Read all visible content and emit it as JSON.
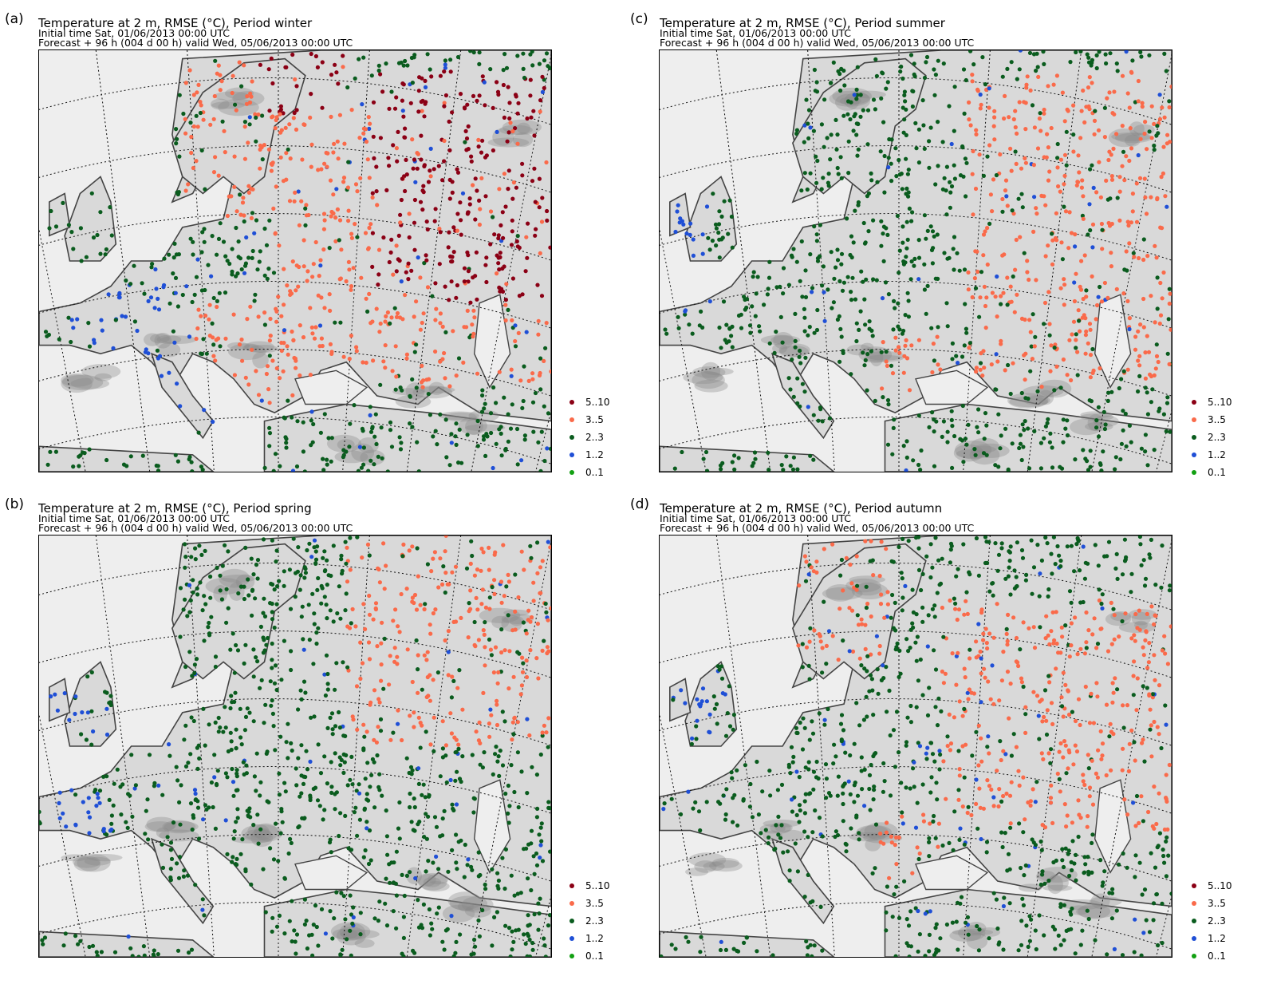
{
  "legend": {
    "classes": [
      {
        "label": "5..10",
        "color": "#8b0015"
      },
      {
        "label": "3..5",
        "color": "#fa6a4a"
      },
      {
        "label": "2..3",
        "color": "#0a5c1e"
      },
      {
        "label": "1..2",
        "color": "#1f4fd6"
      },
      {
        "label": "0..1",
        "color": "#12a012"
      }
    ]
  },
  "panels": [
    {
      "id": "a",
      "label": "(a)",
      "title": "Temperature at 2 m, RMSE (°C), Period winter",
      "initial": "Initial time  Sat, 01/06/2013  00:00 UTC",
      "forecast": "Forecast  +  96 h  (004 d 00 h)  valid Wed, 05/06/2013 00:00 UTC",
      "dominant": [
        [
          0.05,
          0.55,
          0.42,
          0.9,
          "1..2"
        ],
        [
          0.25,
          0.45,
          0.48,
          0.75,
          "2..3"
        ],
        [
          0.28,
          0.0,
          0.6,
          0.4,
          "3..5"
        ],
        [
          0.45,
          0.1,
          1.0,
          0.8,
          "3..5"
        ],
        [
          0.42,
          0.0,
          0.6,
          0.15,
          "5..10"
        ],
        [
          0.65,
          0.05,
          1.0,
          0.6,
          "5..10"
        ],
        [
          0.3,
          0.6,
          0.55,
          0.85,
          "3..5"
        ]
      ]
    },
    {
      "id": "c",
      "label": "(c)",
      "title": "Temperature at 2 m, RMSE (°C), Period summer",
      "initial": "Initial time  Sat, 01/06/2013  00:00 UTC",
      "forecast": "Forecast  +  96 h  (004 d 00 h)  valid Wed, 05/06/2013 00:00 UTC",
      "dominant": [
        [
          0.0,
          0.3,
          0.14,
          0.62,
          "1..2"
        ],
        [
          0.1,
          0.0,
          0.6,
          1.0,
          "2..3"
        ],
        [
          0.6,
          0.05,
          1.0,
          0.8,
          "3..5"
        ],
        [
          0.43,
          0.68,
          0.55,
          0.82,
          "3..5"
        ]
      ]
    },
    {
      "id": "b",
      "label": "(b)",
      "title": "Temperature at 2 m, RMSE (°C), Period spring",
      "initial": "Initial time  Sat, 01/06/2013  00:00 UTC",
      "forecast": "Forecast  +  96 h  (004 d 00 h)  valid Wed, 05/06/2013 00:00 UTC",
      "dominant": [
        [
          0.02,
          0.35,
          0.18,
          0.75,
          "1..2"
        ],
        [
          0.12,
          0.0,
          0.6,
          1.0,
          "2..3"
        ],
        [
          0.6,
          0.0,
          1.0,
          0.5,
          "3..5"
        ]
      ]
    },
    {
      "id": "d",
      "label": "(d)",
      "title": "Temperature at 2 m, RMSE (°C), Period autumn",
      "initial": "Initial time  Sat, 01/06/2013  00:00 UTC",
      "forecast": "Forecast  +  96 h  (004 d 00 h)  valid Wed, 05/06/2013 00:00 UTC",
      "dominant": [
        [
          0.0,
          0.3,
          0.14,
          0.62,
          "1..2"
        ],
        [
          0.1,
          0.0,
          0.55,
          1.0,
          "2..3"
        ],
        [
          0.55,
          0.15,
          1.0,
          0.7,
          "3..5"
        ],
        [
          0.25,
          0.0,
          0.45,
          0.3,
          "3..5"
        ],
        [
          0.43,
          0.66,
          0.55,
          0.82,
          "3..5"
        ]
      ]
    }
  ]
}
